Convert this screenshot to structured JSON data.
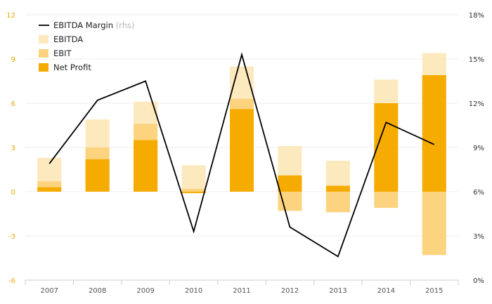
{
  "chart_data": {
    "type": "bar",
    "categories": [
      "2007",
      "2008",
      "2009",
      "2010",
      "2011",
      "2012",
      "2013",
      "2014",
      "2015"
    ],
    "series": [
      {
        "name": "EBITDA",
        "kind": "bar",
        "axis": "left",
        "color": "#fde9be",
        "values": [
          2.3,
          4.9,
          6.1,
          1.8,
          8.5,
          3.1,
          2.1,
          7.6,
          9.4
        ]
      },
      {
        "name": "EBIT",
        "kind": "bar",
        "axis": "left",
        "color": "#fcd47f",
        "values": [
          0.7,
          3.0,
          4.6,
          0.2,
          6.3,
          -1.3,
          -1.4,
          -1.1,
          -4.3
        ]
      },
      {
        "name": "Net Profit",
        "kind": "bar",
        "axis": "left",
        "color": "#f6ab00",
        "values": [
          0.3,
          2.2,
          3.5,
          -0.1,
          5.6,
          1.1,
          0.4,
          6.0,
          7.9
        ]
      },
      {
        "name": "EBITDA Margin",
        "name_suffix": "(rhs)",
        "kind": "line",
        "axis": "right",
        "color": "#000000",
        "values": [
          7.9,
          12.2,
          13.5,
          3.3,
          15.3,
          3.6,
          1.6,
          10.7,
          9.2
        ]
      }
    ],
    "y_left": {
      "ylim": [
        -6,
        12
      ],
      "ticks": [
        "-6",
        "-3",
        "0",
        "3",
        "6",
        "9",
        "12"
      ]
    },
    "y_right": {
      "ylim": [
        0,
        18
      ],
      "ticks": [
        "0%",
        "3%",
        "6%",
        "9%",
        "12%",
        "15%",
        "18%"
      ]
    },
    "grid": true,
    "legend_position": "top-left"
  }
}
